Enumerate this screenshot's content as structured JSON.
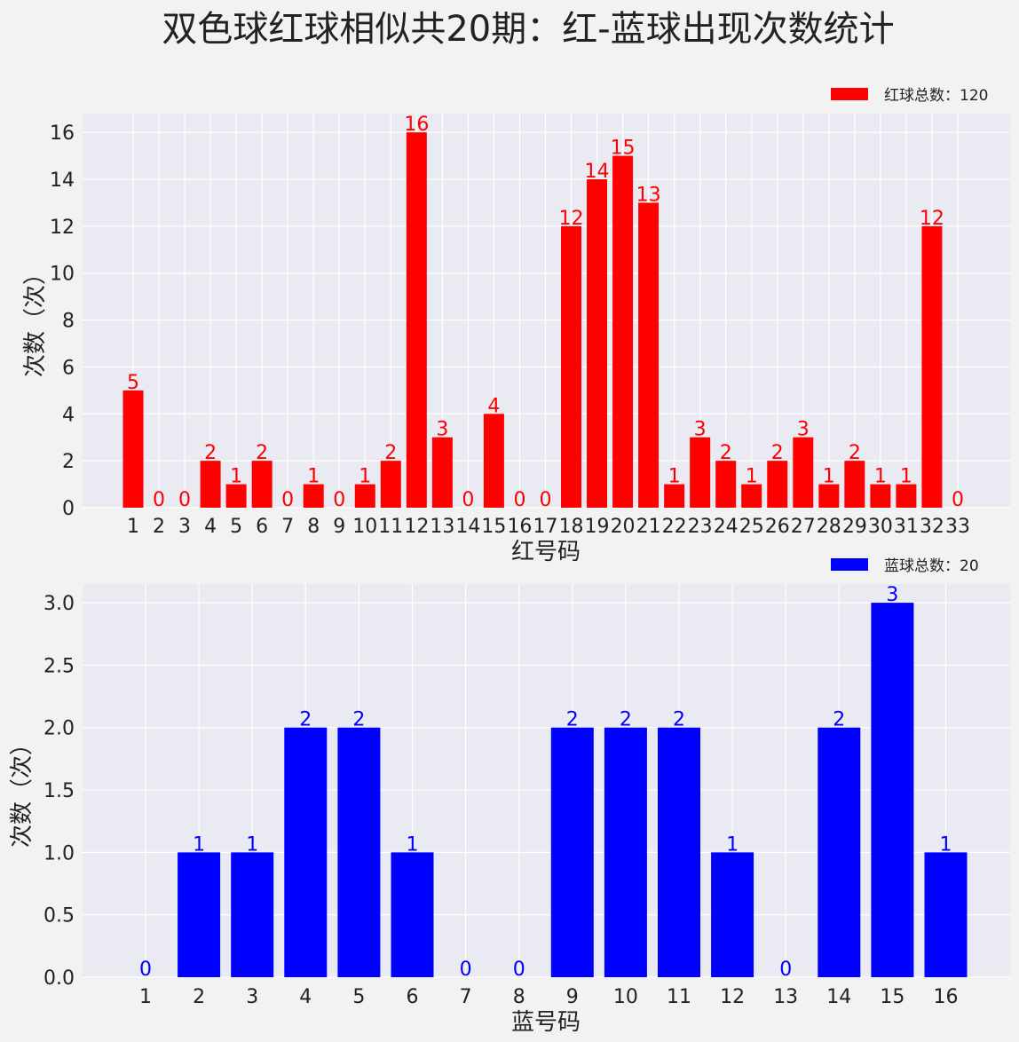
{
  "figure_title": "双色球红球相似共20期：红-蓝球出现次数统计",
  "chart_data": [
    {
      "type": "bar",
      "xlabel": "红号码",
      "ylabel": "次数（次）",
      "legend": "红球总数：120",
      "legend_position": "top-right",
      "color": "#ff0000",
      "label_color": "#ff0000",
      "grid": true,
      "ylim": [
        0,
        16.8
      ],
      "yticks": [
        "0",
        "2",
        "4",
        "6",
        "8",
        "10",
        "12",
        "14",
        "16"
      ],
      "categories": [
        "1",
        "2",
        "3",
        "4",
        "5",
        "6",
        "7",
        "8",
        "9",
        "10",
        "11",
        "12",
        "13",
        "14",
        "15",
        "16",
        "17",
        "18",
        "19",
        "20",
        "21",
        "22",
        "23",
        "24",
        "25",
        "26",
        "27",
        "28",
        "29",
        "30",
        "31",
        "32",
        "33"
      ],
      "values": [
        5,
        0,
        0,
        2,
        1,
        2,
        0,
        1,
        0,
        1,
        2,
        16,
        3,
        0,
        4,
        0,
        0,
        12,
        14,
        15,
        13,
        1,
        3,
        2,
        1,
        2,
        3,
        1,
        2,
        1,
        1,
        12,
        0
      ]
    },
    {
      "type": "bar",
      "xlabel": "蓝号码",
      "ylabel": "次数（次）",
      "legend": "蓝球总数：20",
      "legend_position": "top-right",
      "color": "#0000ff",
      "label_color": "#0000ff",
      "grid": true,
      "ylim": [
        0,
        3.15
      ],
      "yticks": [
        "0.0",
        "0.5",
        "1.0",
        "1.5",
        "2.0",
        "2.5",
        "3.0"
      ],
      "categories": [
        "1",
        "2",
        "3",
        "4",
        "5",
        "6",
        "7",
        "8",
        "9",
        "10",
        "11",
        "12",
        "13",
        "14",
        "15",
        "16"
      ],
      "values": [
        0,
        1,
        1,
        2,
        2,
        1,
        0,
        0,
        2,
        2,
        2,
        1,
        0,
        2,
        3,
        1
      ]
    }
  ]
}
